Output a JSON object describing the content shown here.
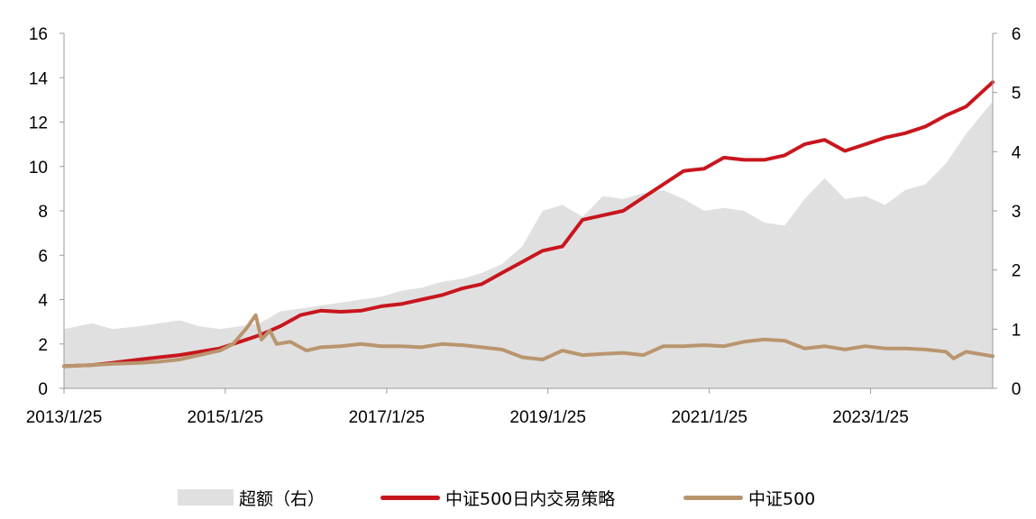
{
  "chart_data": {
    "type": "line",
    "title": "",
    "xlabel": "",
    "ylabel": "",
    "ylabel_right": "",
    "x_ticks": [
      "2013/1/25",
      "2015/1/25",
      "2017/1/25",
      "2019/1/25",
      "2021/1/25",
      "2023/1/25"
    ],
    "x_range": [
      "2013/1/25",
      "2024/7/31"
    ],
    "y_left_ticks": [
      "0",
      "2",
      "4",
      "6",
      "8",
      "10",
      "12",
      "14",
      "16"
    ],
    "y_left_range": [
      0,
      16
    ],
    "y_right_ticks": [
      "0",
      "1",
      "2",
      "3",
      "4",
      "5",
      "6"
    ],
    "y_right_range": [
      0,
      6
    ],
    "grid": false,
    "legend_position": "bottom",
    "legend": [
      {
        "label": "超额（右）",
        "kind": "area",
        "color": "#e0e0e0"
      },
      {
        "label": "中证500日内交易策略",
        "kind": "line",
        "color": "#c8161e"
      },
      {
        "label": "中证500",
        "kind": "line",
        "color": "#b9956e"
      }
    ],
    "series": [
      {
        "name": "超额（右）",
        "type": "area",
        "axis": "right",
        "color": "#e0e0e0",
        "x": [
          "2013/1/25",
          "2013/6/1",
          "2013/9/1",
          "2014/1/1",
          "2014/4/1",
          "2014/7/1",
          "2014/10/1",
          "2015/1/1",
          "2015/4/1",
          "2015/7/1",
          "2015/10/1",
          "2016/1/1",
          "2016/4/1",
          "2016/7/1",
          "2016/10/1",
          "2017/1/1",
          "2017/4/1",
          "2017/7/1",
          "2017/10/1",
          "2018/1/1",
          "2018/4/1",
          "2018/7/1",
          "2018/10/1",
          "2019/1/1",
          "2019/4/1",
          "2019/7/1",
          "2019/10/1",
          "2020/1/1",
          "2020/4/1",
          "2020/7/1",
          "2020/10/1",
          "2021/1/1",
          "2021/4/1",
          "2021/7/1",
          "2021/10/1",
          "2022/1/1",
          "2022/4/1",
          "2022/7/1",
          "2022/10/1",
          "2023/1/1",
          "2023/4/1",
          "2023/7/1",
          "2023/10/1",
          "2024/1/1",
          "2024/4/1",
          "2024/7/31"
        ],
        "values": [
          1.0,
          1.1,
          1.0,
          1.05,
          1.1,
          1.15,
          1.05,
          1.0,
          1.05,
          1.1,
          1.3,
          1.35,
          1.4,
          1.45,
          1.5,
          1.55,
          1.65,
          1.7,
          1.8,
          1.85,
          1.95,
          2.1,
          2.4,
          3.0,
          3.1,
          2.9,
          3.25,
          3.2,
          3.3,
          3.35,
          3.2,
          3.0,
          3.05,
          3.0,
          2.8,
          2.75,
          3.2,
          3.55,
          3.2,
          3.25,
          3.1,
          3.35,
          3.45,
          3.8,
          4.3,
          4.85
        ]
      },
      {
        "name": "中证500日内交易策略",
        "type": "line",
        "axis": "left",
        "color": "#c8161e",
        "x": [
          "2013/1/25",
          "2013/6/1",
          "2013/9/1",
          "2014/1/1",
          "2014/4/1",
          "2014/7/1",
          "2014/10/1",
          "2015/1/1",
          "2015/4/1",
          "2015/7/1",
          "2015/10/1",
          "2016/1/1",
          "2016/4/1",
          "2016/7/1",
          "2016/10/1",
          "2017/1/1",
          "2017/4/1",
          "2017/7/1",
          "2017/10/1",
          "2018/1/1",
          "2018/4/1",
          "2018/7/1",
          "2018/10/1",
          "2019/1/1",
          "2019/4/1",
          "2019/7/1",
          "2019/10/1",
          "2020/1/1",
          "2020/4/1",
          "2020/7/1",
          "2020/10/1",
          "2021/1/1",
          "2021/4/1",
          "2021/7/1",
          "2021/10/1",
          "2022/1/1",
          "2022/4/1",
          "2022/7/1",
          "2022/10/1",
          "2023/1/1",
          "2023/4/1",
          "2023/7/1",
          "2023/10/1",
          "2024/1/1",
          "2024/4/1",
          "2024/7/31"
        ],
        "values": [
          1.0,
          1.05,
          1.15,
          1.3,
          1.4,
          1.5,
          1.65,
          1.8,
          2.1,
          2.4,
          2.8,
          3.3,
          3.5,
          3.45,
          3.5,
          3.7,
          3.8,
          4.0,
          4.2,
          4.5,
          4.7,
          5.2,
          5.7,
          6.2,
          6.4,
          7.6,
          7.8,
          8.0,
          8.6,
          9.2,
          9.8,
          9.9,
          10.4,
          10.3,
          10.3,
          10.5,
          11.0,
          11.2,
          10.7,
          11.0,
          11.3,
          11.5,
          11.8,
          12.3,
          12.7,
          13.8
        ]
      },
      {
        "name": "中证500",
        "type": "line",
        "axis": "left",
        "color": "#b9956e",
        "x": [
          "2013/1/25",
          "2013/6/1",
          "2013/9/1",
          "2014/1/1",
          "2014/4/1",
          "2014/7/1",
          "2014/10/1",
          "2015/1/1",
          "2015/3/1",
          "2015/5/1",
          "2015/6/12",
          "2015/7/8",
          "2015/8/15",
          "2015/9/15",
          "2015/11/15",
          "2016/1/28",
          "2016/4/1",
          "2016/7/1",
          "2016/10/1",
          "2017/1/1",
          "2017/4/1",
          "2017/7/1",
          "2017/10/1",
          "2018/1/1",
          "2018/4/1",
          "2018/7/1",
          "2018/10/1",
          "2019/1/1",
          "2019/4/1",
          "2019/7/1",
          "2019/10/1",
          "2020/1/1",
          "2020/4/1",
          "2020/7/1",
          "2020/10/1",
          "2021/1/1",
          "2021/4/1",
          "2021/7/1",
          "2021/10/1",
          "2022/1/1",
          "2022/4/1",
          "2022/7/1",
          "2022/10/1",
          "2023/1/1",
          "2023/4/1",
          "2023/7/1",
          "2023/10/1",
          "2024/1/1",
          "2024/2/5",
          "2024/4/1",
          "2024/7/31"
        ],
        "values": [
          1.0,
          1.05,
          1.1,
          1.15,
          1.2,
          1.3,
          1.5,
          1.7,
          2.0,
          2.7,
          3.3,
          2.2,
          2.6,
          2.0,
          2.1,
          1.7,
          1.85,
          1.9,
          2.0,
          1.9,
          1.9,
          1.85,
          2.0,
          1.95,
          1.85,
          1.75,
          1.4,
          1.3,
          1.7,
          1.5,
          1.55,
          1.6,
          1.5,
          1.9,
          1.9,
          1.95,
          1.9,
          2.1,
          2.2,
          2.15,
          1.8,
          1.9,
          1.75,
          1.9,
          1.8,
          1.8,
          1.75,
          1.65,
          1.35,
          1.65,
          1.45
        ]
      }
    ]
  }
}
